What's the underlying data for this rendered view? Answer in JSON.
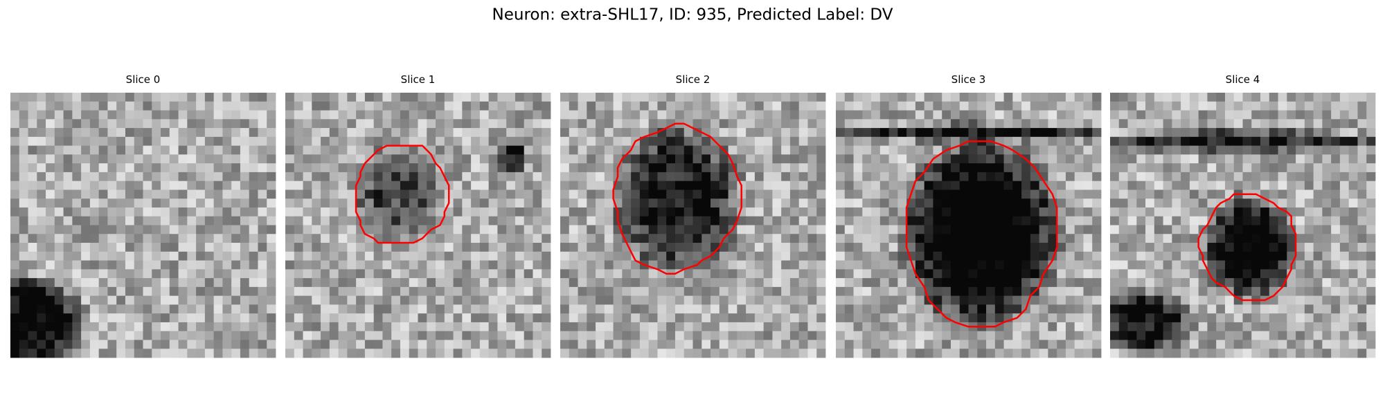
{
  "title": "Neuron: extra-SHL17, ID: 935, Predicted Label: DV",
  "panels": [
    {
      "title": "Slice 0"
    },
    {
      "title": "Slice 1"
    },
    {
      "title": "Slice 2"
    },
    {
      "title": "Slice 3"
    },
    {
      "title": "Slice 4"
    }
  ]
}
